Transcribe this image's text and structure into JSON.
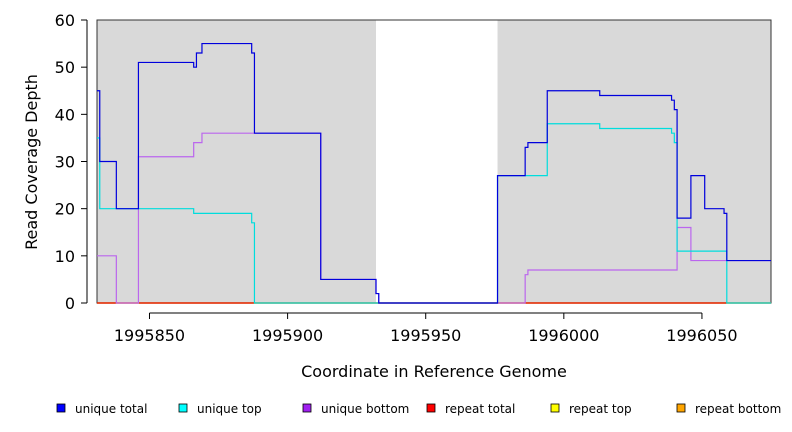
{
  "chart_data": {
    "type": "line",
    "title": "",
    "xlabel": "Coordinate in Reference Genome",
    "ylabel": "Read Coverage Depth",
    "xlim": [
      1995831,
      1996075
    ],
    "ylim": [
      0,
      60
    ],
    "x_ticks": [
      1995850,
      1995900,
      1995950,
      1996000,
      1996050
    ],
    "y_ticks": [
      0,
      10,
      20,
      30,
      40,
      50,
      60
    ],
    "x_tick_labels": [
      "1995850",
      "1995900",
      "1995950",
      "1996000",
      "1996050"
    ],
    "y_tick_labels": [
      "0",
      "10",
      "20",
      "30",
      "40",
      "50",
      "60"
    ],
    "shaded_regions": [
      {
        "x_start": 1995831,
        "x_end": 1995932,
        "label": "aligned region"
      },
      {
        "x_start": 1995976,
        "x_end": 1996075,
        "label": "aligned region"
      }
    ],
    "series": [
      {
        "name": "unique total",
        "color": "#0000dd",
        "step": true,
        "points": [
          [
            1995831,
            45
          ],
          [
            1995832,
            30
          ],
          [
            1995838,
            20
          ],
          [
            1995846,
            51
          ],
          [
            1995866,
            50
          ],
          [
            1995867,
            53
          ],
          [
            1995869,
            55
          ],
          [
            1995887,
            53
          ],
          [
            1995888,
            36
          ],
          [
            1995912,
            5
          ],
          [
            1995932,
            2
          ],
          [
            1995933,
            0
          ],
          [
            1995976,
            27
          ],
          [
            1995986,
            33
          ],
          [
            1995987,
            34
          ],
          [
            1995994,
            45
          ],
          [
            1996013,
            44
          ],
          [
            1996039,
            43
          ],
          [
            1996040,
            41
          ],
          [
            1996041,
            18
          ],
          [
            1996046,
            27
          ],
          [
            1996051,
            20
          ],
          [
            1996058,
            19
          ],
          [
            1996059,
            9
          ],
          [
            1996075,
            9
          ]
        ]
      },
      {
        "name": "unique top",
        "color": "#00dddd",
        "step": true,
        "points": [
          [
            1995831,
            35
          ],
          [
            1995832,
            20
          ],
          [
            1995866,
            19
          ],
          [
            1995887,
            17
          ],
          [
            1995888,
            0
          ],
          [
            1995976,
            27
          ],
          [
            1995994,
            38
          ],
          [
            1996013,
            37
          ],
          [
            1996039,
            36
          ],
          [
            1996040,
            34
          ],
          [
            1996041,
            11
          ],
          [
            1996059,
            0
          ],
          [
            1996075,
            0
          ]
        ]
      },
      {
        "name": "unique bottom",
        "color": "#bb66ee",
        "step": true,
        "points": [
          [
            1995831,
            10
          ],
          [
            1995838,
            0
          ],
          [
            1995846,
            31
          ],
          [
            1995866,
            34
          ],
          [
            1995869,
            36
          ],
          [
            1995912,
            5
          ],
          [
            1995932,
            2
          ],
          [
            1995933,
            0
          ],
          [
            1995986,
            6
          ],
          [
            1995987,
            7
          ],
          [
            1996041,
            16
          ],
          [
            1996046,
            9
          ],
          [
            1996059,
            9
          ],
          [
            1996075,
            9
          ]
        ]
      },
      {
        "name": "repeat total",
        "color": "#dd0000",
        "step": true,
        "points": [
          [
            1995831,
            0
          ],
          [
            1996075,
            0
          ]
        ]
      },
      {
        "name": "repeat top",
        "color": "#eeee00",
        "step": true,
        "points": [
          [
            1995831,
            0
          ],
          [
            1996075,
            0
          ]
        ]
      },
      {
        "name": "repeat bottom",
        "color": "#ff9900",
        "step": true,
        "points": [
          [
            1995831,
            0
          ],
          [
            1996075,
            0
          ]
        ]
      }
    ],
    "legend": {
      "placement": "bottom",
      "entries": [
        {
          "label": "unique total",
          "color": "#0000ff"
        },
        {
          "label": "unique top",
          "color": "#00ffff"
        },
        {
          "label": "unique bottom",
          "color": "#a020f0"
        },
        {
          "label": "repeat total",
          "color": "#ff0000"
        },
        {
          "label": "repeat top",
          "color": "#ffff00"
        },
        {
          "label": "repeat bottom",
          "color": "#ffa500"
        }
      ]
    }
  }
}
